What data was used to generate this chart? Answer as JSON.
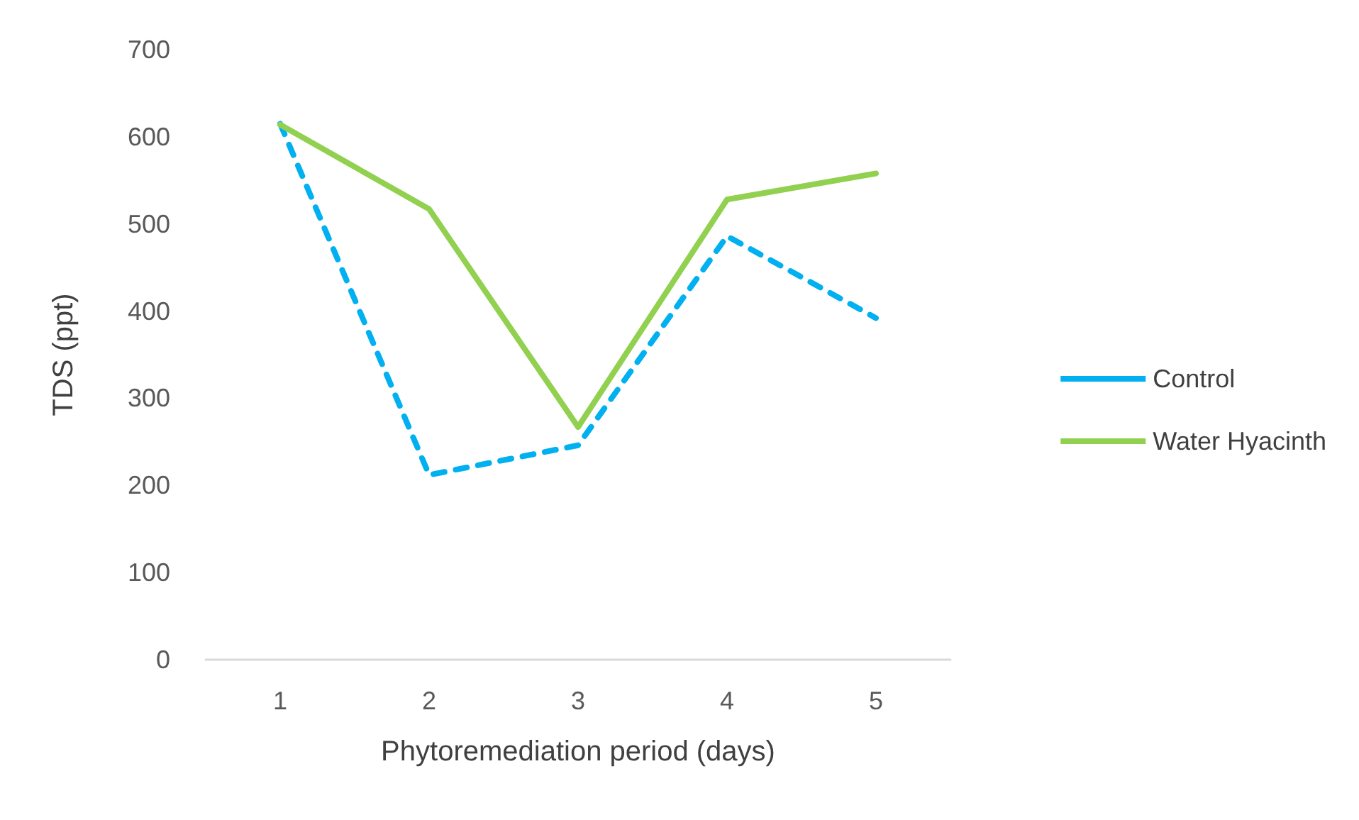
{
  "chart_data": {
    "type": "line",
    "xlabel": "Phytoremediation period (days)",
    "ylabel": "TDS (ppt)",
    "categories": [
      "1",
      "2",
      "3",
      "4",
      "5"
    ],
    "series": [
      {
        "name": "Control",
        "color": "#00b0f0",
        "line_style": "dashed",
        "values": [
          615,
          212,
          246,
          486,
          392
        ]
      },
      {
        "name": "Water Hyacinth",
        "color": "#92d050",
        "line_style": "solid",
        "values": [
          614,
          517,
          267,
          528,
          558
        ]
      }
    ],
    "ylim": [
      0,
      700
    ],
    "yticks": [
      0,
      100,
      200,
      300,
      400,
      500,
      600,
      700
    ],
    "grid": false,
    "legend": "right",
    "marker": "none"
  }
}
